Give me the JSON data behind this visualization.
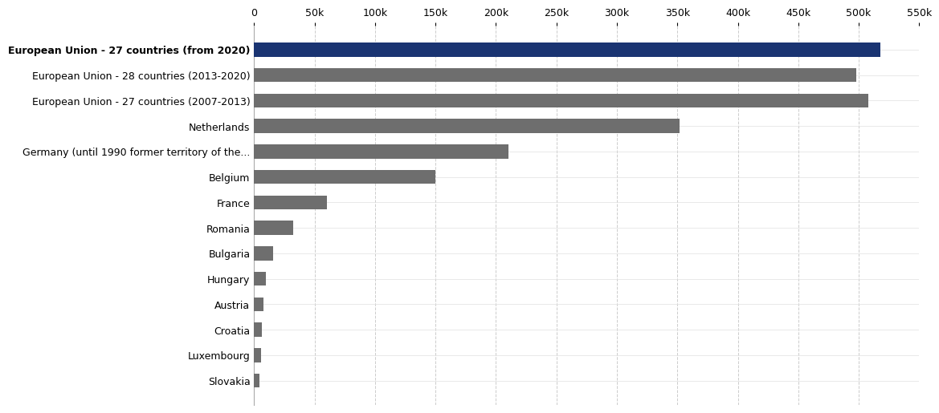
{
  "categories": [
    "Slovakia",
    "Luxembourg",
    "Croatia",
    "Austria",
    "Hungary",
    "Bulgaria",
    "Romania",
    "France",
    "Belgium",
    "Germany (until 1990 former territory of the...",
    "Netherlands",
    "European Union - 27 countries (2007-2013)",
    "European Union - 28 countries (2013-2020)",
    "European Union - 27 countries (from 2020)"
  ],
  "values": [
    4500,
    5500,
    6500,
    7500,
    9500,
    16000,
    32000,
    60000,
    150000,
    210000,
    352000,
    508000,
    498000,
    518000
  ],
  "bar_colors": [
    "#6e6e6e",
    "#6e6e6e",
    "#6e6e6e",
    "#6e6e6e",
    "#6e6e6e",
    "#6e6e6e",
    "#6e6e6e",
    "#6e6e6e",
    "#6e6e6e",
    "#6e6e6e",
    "#6e6e6e",
    "#6e6e6e",
    "#6e6e6e",
    "#1a3472"
  ],
  "xlim": [
    0,
    550000
  ],
  "xticks": [
    0,
    50000,
    100000,
    150000,
    200000,
    250000,
    300000,
    350000,
    400000,
    450000,
    500000,
    550000
  ],
  "xtick_labels": [
    "0",
    "50k",
    "100k",
    "150k",
    "200k",
    "250k",
    "300k",
    "350k",
    "400k",
    "450k",
    "500k",
    "550k"
  ],
  "background_color": "#ffffff",
  "grid_color": "#cccccc",
  "bar_height": 0.55,
  "label_fontsize": 9,
  "tick_fontsize": 9
}
